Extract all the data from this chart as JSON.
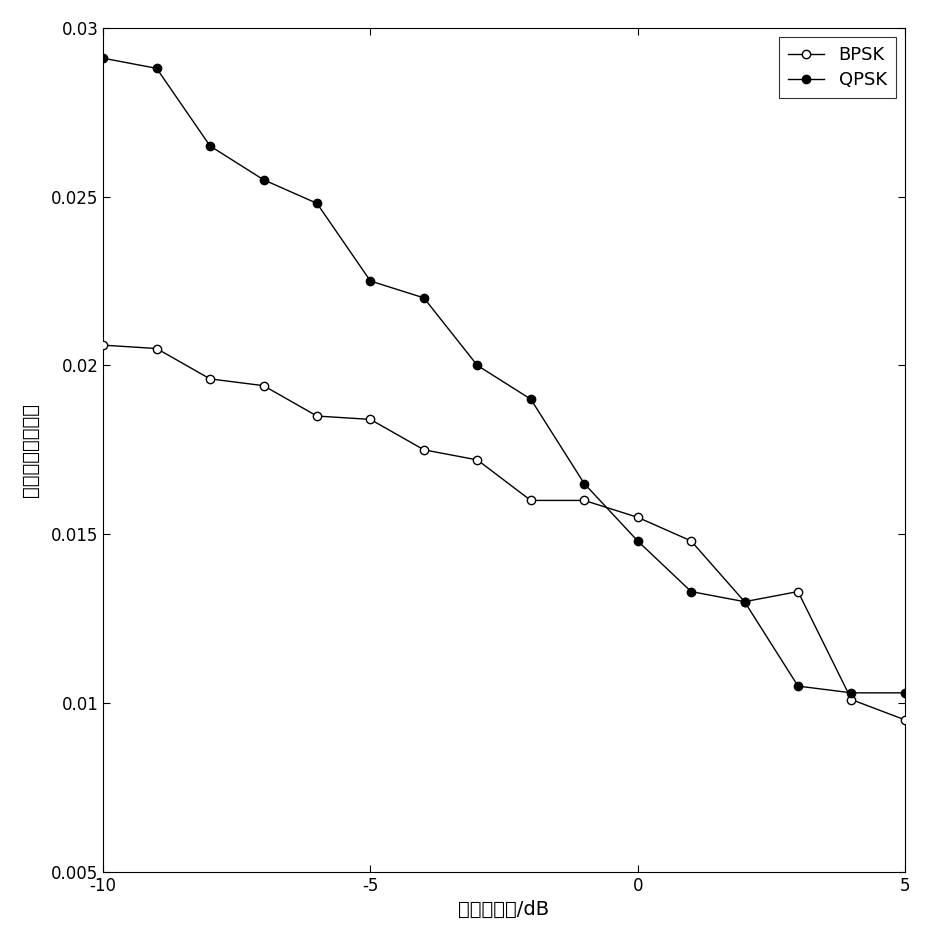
{
  "bpsk_x": [
    -10,
    -9,
    -8,
    -7,
    -6,
    -5,
    -4,
    -3,
    -2,
    -1,
    0,
    1,
    2,
    3,
    4,
    5
  ],
  "bpsk_y": [
    0.0206,
    0.0205,
    0.0196,
    0.0194,
    0.0185,
    0.0184,
    0.0175,
    0.0172,
    0.016,
    0.016,
    0.0155,
    0.0148,
    0.013,
    0.0133,
    0.0101,
    0.0095
  ],
  "qpsk_x": [
    -10,
    -9,
    -8,
    -7,
    -6,
    -5,
    -4,
    -3,
    -2,
    -1,
    0,
    1,
    2,
    3,
    4,
    5
  ],
  "qpsk_y": [
    0.0291,
    0.0288,
    0.0265,
    0.0255,
    0.0248,
    0.0225,
    0.022,
    0.02,
    0.019,
    0.0165,
    0.0148,
    0.0133,
    0.013,
    0.0105,
    0.0103,
    0.0103
  ],
  "xlabel": "混合信噪比/dB",
  "ylabel": "归一化均方根误差",
  "xlim": [
    -10,
    5
  ],
  "ylim": [
    0.005,
    0.03
  ],
  "xticks": [
    -10,
    -5,
    0,
    5
  ],
  "yticks": [
    0.005,
    0.01,
    0.015,
    0.02,
    0.025,
    0.03
  ],
  "legend_bpsk": "BPSK",
  "legend_qpsk": "QPSK",
  "line_color": "#000000",
  "background_color": "#ffffff"
}
